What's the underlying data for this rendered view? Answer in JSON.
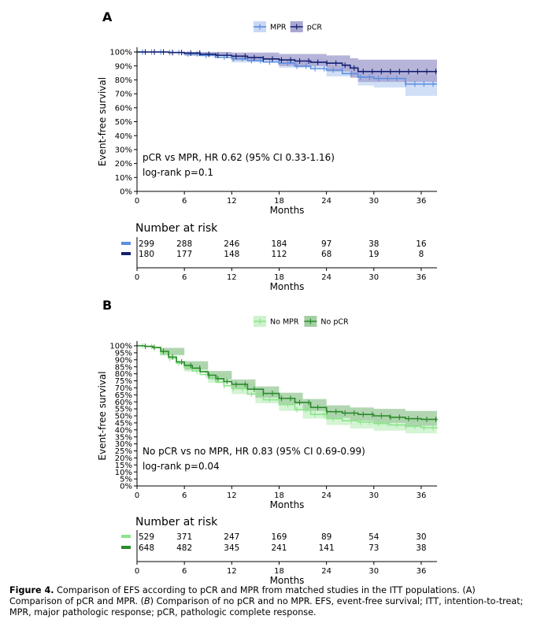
{
  "chart_data": [
    {
      "type": "line",
      "subtype": "kaplan-meier",
      "panel_label": "A",
      "xlabel": "Months",
      "ylabel": "Event-free survival",
      "xlim": [
        0,
        38
      ],
      "ylim": [
        0,
        100
      ],
      "xticks": [
        0,
        6,
        12,
        18,
        24,
        30,
        36
      ],
      "yticks": [
        "0%",
        "10%",
        "20%",
        "30%",
        "40%",
        "50%",
        "60%",
        "70%",
        "80%",
        "90%",
        "100%"
      ],
      "annotation_line1": "pCR vs MPR, HR 0.62 (95% CI 0.33-1.16)",
      "annotation_line2": "log-rank p=0.1",
      "risk_table_title": "Number at risk",
      "legend_position": "top-center",
      "series": [
        {
          "name": "MPR",
          "color": "#5b8fe0",
          "band_color": "#c9d9f5",
          "points": [
            [
              0,
              100
            ],
            [
              4,
              99.6
            ],
            [
              6,
              98.6
            ],
            [
              8,
              97.5
            ],
            [
              10,
              96.2
            ],
            [
              12,
              95.1
            ],
            [
              14,
              93.8
            ],
            [
              16,
              92.8
            ],
            [
              18,
              92
            ],
            [
              20,
              89.8
            ],
            [
              22,
              88
            ],
            [
              24,
              87
            ],
            [
              26,
              84.5
            ],
            [
              28,
              82
            ],
            [
              30,
              81
            ],
            [
              32,
              81
            ],
            [
              34,
              77
            ],
            [
              36,
              77
            ],
            [
              38,
              77
            ]
          ],
          "ci_upper": [
            [
              0,
              100
            ],
            [
              6,
              99.8
            ],
            [
              12,
              97.6
            ],
            [
              18,
              94.9
            ],
            [
              24,
              90.5
            ],
            [
              28,
              87
            ],
            [
              30,
              86.5
            ],
            [
              34,
              84
            ],
            [
              38,
              85
            ]
          ],
          "ci_lower": [
            [
              0,
              100
            ],
            [
              6,
              97.2
            ],
            [
              12,
              92.5
            ],
            [
              18,
              88.7
            ],
            [
              24,
              82.5
            ],
            [
              28,
              76
            ],
            [
              30,
              74.5
            ],
            [
              34,
              68.5
            ],
            [
              38,
              67
            ]
          ],
          "at_risk": [
            299,
            288,
            246,
            184,
            97,
            38,
            16
          ]
        },
        {
          "name": "pCR",
          "color": "#152070",
          "band_color": "#a9a7d2",
          "points": [
            [
              0,
              100
            ],
            [
              4,
              99.6
            ],
            [
              6,
              99.2
            ],
            [
              8,
              98.4
            ],
            [
              10,
              97.6
            ],
            [
              12,
              97
            ],
            [
              14,
              96
            ],
            [
              16,
              95
            ],
            [
              18,
              94.3
            ],
            [
              20,
              93.5
            ],
            [
              22,
              92.6
            ],
            [
              24,
              92
            ],
            [
              26,
              90.5
            ],
            [
              27,
              88.5
            ],
            [
              28,
              86
            ],
            [
              30,
              86
            ],
            [
              38,
              86
            ]
          ],
          "ci_upper": [
            [
              0,
              100
            ],
            [
              6,
              100
            ],
            [
              12,
              99.6
            ],
            [
              18,
              98.6
            ],
            [
              24,
              97.5
            ],
            [
              27,
              95.5
            ],
            [
              28,
              94.5
            ],
            [
              38,
              95
            ]
          ],
          "ci_lower": [
            [
              0,
              100
            ],
            [
              6,
              97.5
            ],
            [
              12,
              94
            ],
            [
              18,
              90
            ],
            [
              24,
              86
            ],
            [
              27,
              81.5
            ],
            [
              28,
              78.5
            ],
            [
              38,
              78
            ]
          ],
          "at_risk": [
            180,
            177,
            148,
            112,
            68,
            19,
            8
          ]
        }
      ]
    },
    {
      "type": "line",
      "subtype": "kaplan-meier",
      "panel_label": "B",
      "xlabel": "Months",
      "ylabel": "Event-free survival",
      "xlim": [
        0,
        38
      ],
      "ylim": [
        0,
        100
      ],
      "xticks": [
        0,
        6,
        12,
        18,
        24,
        30,
        36
      ],
      "yticks": [
        "0%",
        "5%",
        "10%",
        "15%",
        "20%",
        "25%",
        "30%",
        "35%",
        "40%",
        "45%",
        "50%",
        "55%",
        "60%",
        "65%",
        "70%",
        "75%",
        "80%",
        "85%",
        "90%",
        "95%",
        "100%"
      ],
      "annotation_line1": "No pCR vs no MPR, HR 0.83 (95% CI 0.69-0.99)",
      "annotation_line2": "log-rank p=0.04",
      "risk_table_title": "Number at risk",
      "legend_position": "top-center",
      "series": [
        {
          "name": "No MPR",
          "color": "#8be58b",
          "band_color": "#cdf2cd",
          "points": [
            [
              0,
              100
            ],
            [
              1,
              99.5
            ],
            [
              2,
              98.5
            ],
            [
              3,
              95
            ],
            [
              4,
              91
            ],
            [
              5,
              87.5
            ],
            [
              6,
              84.5
            ],
            [
              7,
              82
            ],
            [
              8,
              79.5
            ],
            [
              9,
              77
            ],
            [
              10,
              74
            ],
            [
              11,
              71.5
            ],
            [
              12,
              69.5
            ],
            [
              14,
              65.5
            ],
            [
              16,
              61.5
            ],
            [
              18,
              58
            ],
            [
              20,
              54.5
            ],
            [
              22,
              51
            ],
            [
              24,
              48
            ],
            [
              26,
              46.5
            ],
            [
              28,
              45.5
            ],
            [
              30,
              44.5
            ],
            [
              32,
              43.5
            ],
            [
              34,
              42.5
            ],
            [
              36,
              41.5
            ],
            [
              38,
              41
            ]
          ],
          "ci_upper": [
            [
              0,
              100
            ],
            [
              3,
              97
            ],
            [
              6,
              87.5
            ],
            [
              9,
              80.5
            ],
            [
              12,
              73.5
            ],
            [
              15,
              67.5
            ],
            [
              18,
              62.5
            ],
            [
              21,
              57.5
            ],
            [
              24,
              53
            ],
            [
              27,
              51
            ],
            [
              30,
              50
            ],
            [
              34,
              48.5
            ],
            [
              38,
              47
            ]
          ],
          "ci_lower": [
            [
              0,
              100
            ],
            [
              3,
              93
            ],
            [
              6,
              81.5
            ],
            [
              9,
              73.5
            ],
            [
              12,
              65.5
            ],
            [
              15,
              59
            ],
            [
              18,
              53.5
            ],
            [
              21,
              48
            ],
            [
              24,
              43.5
            ],
            [
              27,
              41
            ],
            [
              30,
              39.5
            ],
            [
              34,
              37.5
            ],
            [
              38,
              35.5
            ]
          ],
          "at_risk": [
            529,
            371,
            247,
            169,
            89,
            54,
            30
          ]
        },
        {
          "name": "No pCR",
          "color": "#2b8a2b",
          "band_color": "#a4cfa4",
          "points": [
            [
              0,
              100
            ],
            [
              1,
              99.6
            ],
            [
              2,
              98.8
            ],
            [
              3,
              96
            ],
            [
              4,
              92
            ],
            [
              5,
              88.5
            ],
            [
              6,
              86
            ],
            [
              7,
              84
            ],
            [
              8,
              81.5
            ],
            [
              9,
              79
            ],
            [
              10,
              76.5
            ],
            [
              11,
              74.5
            ],
            [
              12,
              72.5
            ],
            [
              14,
              69
            ],
            [
              16,
              66
            ],
            [
              18,
              62.5
            ],
            [
              20,
              59.5
            ],
            [
              22,
              56
            ],
            [
              24,
              53
            ],
            [
              26,
              52
            ],
            [
              28,
              51
            ],
            [
              30,
              50
            ],
            [
              32,
              49
            ],
            [
              34,
              48
            ],
            [
              36,
              47.5
            ],
            [
              38,
              47
            ]
          ],
          "ci_upper": [
            [
              0,
              100
            ],
            [
              3,
              98.5
            ],
            [
              6,
              89
            ],
            [
              9,
              82
            ],
            [
              12,
              76
            ],
            [
              15,
              71
            ],
            [
              18,
              66.5
            ],
            [
              21,
              62
            ],
            [
              24,
              57.5
            ],
            [
              27,
              56
            ],
            [
              30,
              55
            ],
            [
              34,
              53.5
            ],
            [
              38,
              53
            ]
          ],
          "ci_lower": [
            [
              0,
              100
            ],
            [
              3,
              93.5
            ],
            [
              6,
              83
            ],
            [
              9,
              76
            ],
            [
              12,
              69
            ],
            [
              15,
              63
            ],
            [
              18,
              58.5
            ],
            [
              21,
              53.5
            ],
            [
              24,
              48.5
            ],
            [
              27,
              46.5
            ],
            [
              30,
              45
            ],
            [
              34,
              43
            ],
            [
              38,
              41
            ]
          ],
          "at_risk": [
            648,
            482,
            345,
            241,
            141,
            73,
            38
          ]
        }
      ]
    }
  ],
  "caption": {
    "label": "Figure 4.",
    "text_part1": " Comparison of EFS according to pCR and MPR from matched studies in the ITT populations. (A) Comparison of pCR and MPR. (",
    "text_italic": "B",
    "text_part2": ") Comparison of no pCR and no MPR. EFS, event-free survival; ITT, intention-to-treat; MPR, major pathologic response; pCR, pathologic complete response."
  }
}
